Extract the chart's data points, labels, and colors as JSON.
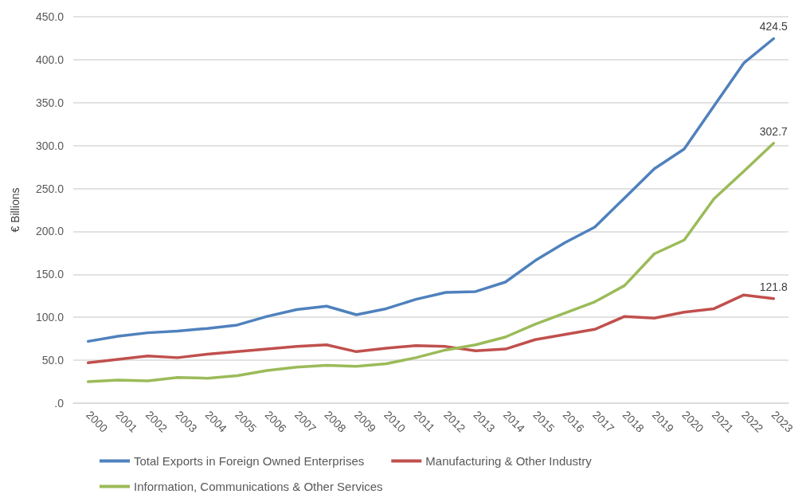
{
  "chart_data": {
    "type": "line",
    "ylabel": "€ Billions",
    "categories": [
      "2000",
      "2001",
      "2002",
      "2003",
      "2004",
      "2005",
      "2006",
      "2007",
      "2008",
      "2009",
      "2010",
      "2011",
      "2012",
      "2013",
      "2014",
      "2015",
      "2016",
      "2017",
      "2018",
      "2019",
      "2020",
      "2021",
      "2022",
      "2023"
    ],
    "ylim": [
      0,
      450
    ],
    "yticks": [
      {
        "value": 0,
        "label": ".0"
      },
      {
        "value": 50,
        "label": "50.0"
      },
      {
        "value": 100,
        "label": "100.0"
      },
      {
        "value": 150,
        "label": "150.0"
      },
      {
        "value": 200,
        "label": "200.0"
      },
      {
        "value": 250,
        "label": "250.0"
      },
      {
        "value": 300,
        "label": "300.0"
      },
      {
        "value": 350,
        "label": "350.0"
      },
      {
        "value": 400,
        "label": "400.0"
      },
      {
        "value": 450,
        "label": "450.0"
      }
    ],
    "grid": "y",
    "legend": "bottom",
    "marker": "none",
    "line_style": "solid",
    "series": [
      {
        "name": "Total Exports in Foreign Owned Enterprises",
        "color": "#4f81bd",
        "values": [
          72,
          78,
          82,
          84,
          87,
          91,
          101,
          109,
          113,
          103,
          110,
          121,
          129,
          130,
          141,
          166,
          187,
          205,
          239,
          273,
          296,
          346,
          396,
          424.5
        ],
        "value_labels": [
          null,
          null,
          null,
          null,
          null,
          null,
          null,
          null,
          null,
          null,
          null,
          null,
          null,
          null,
          null,
          null,
          null,
          null,
          null,
          null,
          null,
          null,
          null,
          "424.5"
        ]
      },
      {
        "name": "Manufacturing & Other Industry",
        "color": "#c0504d",
        "values": [
          47,
          51,
          55,
          53,
          57,
          60,
          63,
          66,
          68,
          60,
          64,
          67,
          66,
          61,
          63,
          74,
          80,
          86,
          101,
          99,
          106,
          110,
          126,
          121.8
        ],
        "value_labels": [
          null,
          null,
          null,
          null,
          null,
          null,
          null,
          null,
          null,
          null,
          null,
          null,
          null,
          null,
          null,
          null,
          null,
          null,
          null,
          null,
          null,
          null,
          null,
          "121.8"
        ]
      },
      {
        "name": "Information, Communications & Other Services",
        "color": "#9bbb59",
        "values": [
          25,
          27,
          26,
          30,
          29,
          32,
          38,
          42,
          44,
          43,
          46,
          53,
          62,
          68,
          77,
          92,
          105,
          118,
          137,
          174,
          190,
          238,
          270,
          302.7
        ],
        "value_labels": [
          null,
          null,
          null,
          null,
          null,
          null,
          null,
          null,
          null,
          null,
          null,
          null,
          null,
          null,
          null,
          null,
          null,
          null,
          null,
          null,
          null,
          null,
          null,
          "302.7"
        ]
      }
    ]
  }
}
